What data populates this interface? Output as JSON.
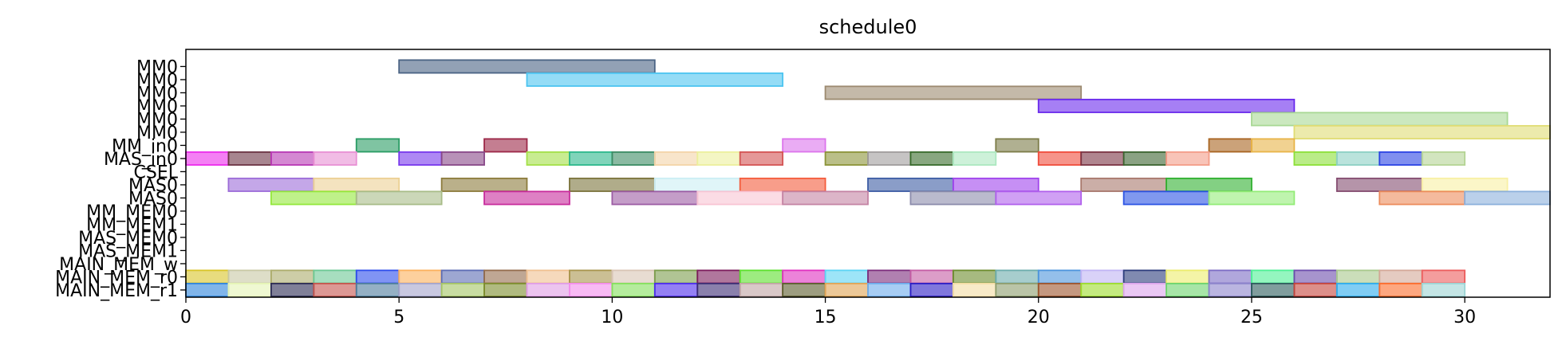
{
  "chart_data": {
    "type": "gantt",
    "title": "schedule0",
    "xlabel": "",
    "ylabel": "",
    "xlim": [
      0,
      32
    ],
    "xticks": [
      0,
      5,
      10,
      15,
      20,
      25,
      30
    ],
    "grid": false,
    "rows": [
      "MM0",
      "MM0",
      "MM0",
      "MM0",
      "MM0",
      "MM0",
      "MM_in0",
      "MAS_in0",
      "CSEL",
      "MAS0",
      "MAS0",
      "MM_MEM0",
      "MM_MEM1",
      "MAS_MEM0",
      "MAS_MEM1",
      "MAIN_MEM_w",
      "MAIN_MEM_r0",
      "MAIN_MEM_r1"
    ],
    "tasks": [
      {
        "row": 0,
        "start": 5,
        "end": 11,
        "color": "#4a6384"
      },
      {
        "row": 1,
        "start": 8,
        "end": 14,
        "color": "#4cc4f0"
      },
      {
        "row": 2,
        "start": 15,
        "end": 21,
        "color": "#9c8a70"
      },
      {
        "row": 3,
        "start": 20,
        "end": 26,
        "color": "#6a2aec"
      },
      {
        "row": 4,
        "start": 25,
        "end": 31,
        "color": "#a8d894"
      },
      {
        "row": 5,
        "start": 26,
        "end": 32,
        "color": "#e0dc74"
      },
      {
        "row": 6,
        "start": 4,
        "end": 5,
        "color": "#2a9c64"
      },
      {
        "row": 6,
        "start": 7,
        "end": 8,
        "color": "#9c2848"
      },
      {
        "row": 6,
        "start": 14,
        "end": 15,
        "color": "#dc74ec"
      },
      {
        "row": 6,
        "start": 19,
        "end": 20,
        "color": "#7c7c48"
      },
      {
        "row": 6,
        "start": 24,
        "end": 25,
        "color": "#a86420"
      },
      {
        "row": 6,
        "start": 25,
        "end": 26,
        "color": "#e8b448"
      },
      {
        "row": 7,
        "start": 0,
        "end": 1,
        "color": "#ec2cec"
      },
      {
        "row": 7,
        "start": 1,
        "end": 2,
        "color": "#6c3444"
      },
      {
        "row": 7,
        "start": 2,
        "end": 3,
        "color": "#b838b4"
      },
      {
        "row": 7,
        "start": 3,
        "end": 4,
        "color": "#e890d4"
      },
      {
        "row": 7,
        "start": 5,
        "end": 6,
        "color": "#7838ec"
      },
      {
        "row": 7,
        "start": 6,
        "end": 7,
        "color": "#884888"
      },
      {
        "row": 7,
        "start": 8,
        "end": 9,
        "color": "#a4e048"
      },
      {
        "row": 7,
        "start": 9,
        "end": 10,
        "color": "#2cb88c"
      },
      {
        "row": 7,
        "start": 10,
        "end": 11,
        "color": "#3c8c64"
      },
      {
        "row": 7,
        "start": 11,
        "end": 12,
        "color": "#f4d4a8"
      },
      {
        "row": 7,
        "start": 12,
        "end": 13,
        "color": "#ecf09c"
      },
      {
        "row": 7,
        "start": 13,
        "end": 14,
        "color": "#d45454"
      },
      {
        "row": 7,
        "start": 15,
        "end": 16,
        "color": "#8c9438"
      },
      {
        "row": 7,
        "start": 16,
        "end": 17,
        "color": "#a09c9c"
      },
      {
        "row": 7,
        "start": 17,
        "end": 18,
        "color": "#386c2c"
      },
      {
        "row": 7,
        "start": 18,
        "end": 19,
        "color": "#ace8c0"
      },
      {
        "row": 7,
        "start": 20,
        "end": 21,
        "color": "#f04c3c"
      },
      {
        "row": 7,
        "start": 21,
        "end": 22,
        "color": "#7c3444"
      },
      {
        "row": 7,
        "start": 22,
        "end": 23,
        "color": "#3c6430"
      },
      {
        "row": 7,
        "start": 23,
        "end": 24,
        "color": "#f49c88"
      },
      {
        "row": 7,
        "start": 26,
        "end": 27,
        "color": "#8ce038"
      },
      {
        "row": 7,
        "start": 27,
        "end": 28,
        "color": "#8cd0c4"
      },
      {
        "row": 7,
        "start": 28,
        "end": 29,
        "color": "#2c44e4"
      },
      {
        "row": 7,
        "start": 29,
        "end": 30,
        "color": "#b4d494"
      },
      {
        "row": 9,
        "start": 1,
        "end": 3,
        "color": "#9c6cd8"
      },
      {
        "row": 9,
        "start": 3,
        "end": 5,
        "color": "#ecd094"
      },
      {
        "row": 9,
        "start": 6,
        "end": 8,
        "color": "#8c7c3c"
      },
      {
        "row": 9,
        "start": 9,
        "end": 11,
        "color": "#7c743c"
      },
      {
        "row": 9,
        "start": 11,
        "end": 13,
        "color": "#cceef4"
      },
      {
        "row": 9,
        "start": 13,
        "end": 15,
        "color": "#f45c3c"
      },
      {
        "row": 9,
        "start": 16,
        "end": 18,
        "color": "#3c5ca4"
      },
      {
        "row": 9,
        "start": 18,
        "end": 20,
        "color": "#a044ec"
      },
      {
        "row": 9,
        "start": 21,
        "end": 23,
        "color": "#a8786c"
      },
      {
        "row": 9,
        "start": 23,
        "end": 25,
        "color": "#30b030"
      },
      {
        "row": 9,
        "start": 27,
        "end": 29,
        "color": "#844c70"
      },
      {
        "row": 9,
        "start": 29,
        "end": 31,
        "color": "#f8f0a4"
      },
      {
        "row": 10,
        "start": 2,
        "end": 4,
        "color": "#94e83c"
      },
      {
        "row": 10,
        "start": 4,
        "end": 6,
        "color": "#a8bc88"
      },
      {
        "row": 10,
        "start": 7,
        "end": 9,
        "color": "#c82c9c"
      },
      {
        "row": 10,
        "start": 10,
        "end": 12,
        "color": "#9c5ca4"
      },
      {
        "row": 10,
        "start": 12,
        "end": 14,
        "color": "#f8c4d4"
      },
      {
        "row": 10,
        "start": 14,
        "end": 16,
        "color": "#c484a4"
      },
      {
        "row": 10,
        "start": 17,
        "end": 19,
        "color": "#8c8cac"
      },
      {
        "row": 10,
        "start": 19,
        "end": 21,
        "color": "#b060ec"
      },
      {
        "row": 10,
        "start": 22,
        "end": 24,
        "color": "#2c54e4"
      },
      {
        "row": 10,
        "start": 24,
        "end": 26,
        "color": "#94ec78"
      },
      {
        "row": 10,
        "start": 28,
        "end": 30,
        "color": "#ec8c5c"
      },
      {
        "row": 10,
        "start": 30,
        "end": 32,
        "color": "#8cb0dc"
      },
      {
        "row": 16,
        "start": 0,
        "end": 1,
        "color": "#d8c428"
      },
      {
        "row": 16,
        "start": 1,
        "end": 2,
        "color": "#c8c8a4"
      },
      {
        "row": 16,
        "start": 2,
        "end": 3,
        "color": "#acac6c"
      },
      {
        "row": 16,
        "start": 3,
        "end": 4,
        "color": "#6cc894"
      },
      {
        "row": 16,
        "start": 4,
        "end": 5,
        "color": "#2c4cec"
      },
      {
        "row": 16,
        "start": 5,
        "end": 6,
        "color": "#fcb05c"
      },
      {
        "row": 16,
        "start": 6,
        "end": 7,
        "color": "#5c6cb4"
      },
      {
        "row": 16,
        "start": 7,
        "end": 8,
        "color": "#946c4c"
      },
      {
        "row": 16,
        "start": 8,
        "end": 9,
        "color": "#f0c090"
      },
      {
        "row": 16,
        "start": 9,
        "end": 10,
        "color": "#a8944c"
      },
      {
        "row": 16,
        "start": 10,
        "end": 11,
        "color": "#d8c4b4"
      },
      {
        "row": 16,
        "start": 11,
        "end": 12,
        "color": "#7c9c4c"
      },
      {
        "row": 16,
        "start": 12,
        "end": 13,
        "color": "#7c1c5c"
      },
      {
        "row": 16,
        "start": 13,
        "end": 14,
        "color": "#5ce02c"
      },
      {
        "row": 16,
        "start": 14,
        "end": 15,
        "color": "#e030c0"
      },
      {
        "row": 16,
        "start": 15,
        "end": 16,
        "color": "#5cd4f4"
      },
      {
        "row": 16,
        "start": 16,
        "end": 17,
        "color": "#7c2c7c"
      },
      {
        "row": 16,
        "start": 17,
        "end": 18,
        "color": "#c45ca4"
      },
      {
        "row": 16,
        "start": 18,
        "end": 19,
        "color": "#6c8c2c"
      },
      {
        "row": 16,
        "start": 19,
        "end": 20,
        "color": "#6cacac"
      },
      {
        "row": 16,
        "start": 20,
        "end": 21,
        "color": "#4c94dc"
      },
      {
        "row": 16,
        "start": 21,
        "end": 22,
        "color": "#c0b4f4"
      },
      {
        "row": 16,
        "start": 22,
        "end": 23,
        "color": "#2c3c7c"
      },
      {
        "row": 16,
        "start": 23,
        "end": 24,
        "color": "#ecec6c"
      },
      {
        "row": 16,
        "start": 24,
        "end": 25,
        "color": "#7c6cc4"
      },
      {
        "row": 16,
        "start": 25,
        "end": 26,
        "color": "#4cf094"
      },
      {
        "row": 16,
        "start": 26,
        "end": 27,
        "color": "#6c4cac"
      },
      {
        "row": 16,
        "start": 27,
        "end": 28,
        "color": "#a8c88c"
      },
      {
        "row": 16,
        "start": 28,
        "end": 29,
        "color": "#d4a898"
      },
      {
        "row": 16,
        "start": 29,
        "end": 30,
        "color": "#ec5c5c"
      },
      {
        "row": 17,
        "start": 0,
        "end": 1,
        "color": "#2c84dc"
      },
      {
        "row": 17,
        "start": 1,
        "end": 2,
        "color": "#e4f4b4"
      },
      {
        "row": 17,
        "start": 2,
        "end": 3,
        "color": "#2c2c54"
      },
      {
        "row": 17,
        "start": 3,
        "end": 4,
        "color": "#c4544c"
      },
      {
        "row": 17,
        "start": 4,
        "end": 5,
        "color": "#4c7c9c"
      },
      {
        "row": 17,
        "start": 5,
        "end": 6,
        "color": "#a4a4cc"
      },
      {
        "row": 17,
        "start": 6,
        "end": 7,
        "color": "#a4c464"
      },
      {
        "row": 17,
        "start": 7,
        "end": 8,
        "color": "#7c8c2c"
      },
      {
        "row": 17,
        "start": 8,
        "end": 9,
        "color": "#e09ce4"
      },
      {
        "row": 17,
        "start": 9,
        "end": 10,
        "color": "#f48cec"
      },
      {
        "row": 17,
        "start": 10,
        "end": 11,
        "color": "#84e05c"
      },
      {
        "row": 17,
        "start": 11,
        "end": 12,
        "color": "#4c2cec"
      },
      {
        "row": 17,
        "start": 12,
        "end": 13,
        "color": "#3c2c74"
      },
      {
        "row": 17,
        "start": 13,
        "end": 14,
        "color": "#c0a4a4"
      },
      {
        "row": 17,
        "start": 14,
        "end": 15,
        "color": "#5c5c2c"
      },
      {
        "row": 17,
        "start": 15,
        "end": 16,
        "color": "#e0a454"
      },
      {
        "row": 17,
        "start": 16,
        "end": 17,
        "color": "#6cacec"
      },
      {
        "row": 17,
        "start": 17,
        "end": 18,
        "color": "#2c1cc4"
      },
      {
        "row": 17,
        "start": 18,
        "end": 19,
        "color": "#f4dca4"
      },
      {
        "row": 17,
        "start": 19,
        "end": 20,
        "color": "#8c9c6c"
      },
      {
        "row": 17,
        "start": 20,
        "end": 21,
        "color": "#9c542c"
      },
      {
        "row": 17,
        "start": 21,
        "end": 22,
        "color": "#9cdc2c"
      },
      {
        "row": 17,
        "start": 22,
        "end": 23,
        "color": "#dca4ec"
      },
      {
        "row": 17,
        "start": 23,
        "end": 24,
        "color": "#6cd46c"
      },
      {
        "row": 17,
        "start": 24,
        "end": 25,
        "color": "#8c84cc"
      },
      {
        "row": 17,
        "start": 25,
        "end": 26,
        "color": "#2c5c5c"
      },
      {
        "row": 17,
        "start": 26,
        "end": 27,
        "color": "#c4443c"
      },
      {
        "row": 17,
        "start": 27,
        "end": 28,
        "color": "#2cacec"
      },
      {
        "row": 17,
        "start": 28,
        "end": 29,
        "color": "#fc6c2c"
      },
      {
        "row": 17,
        "start": 29,
        "end": 30,
        "color": "#9cd4d4"
      }
    ]
  }
}
